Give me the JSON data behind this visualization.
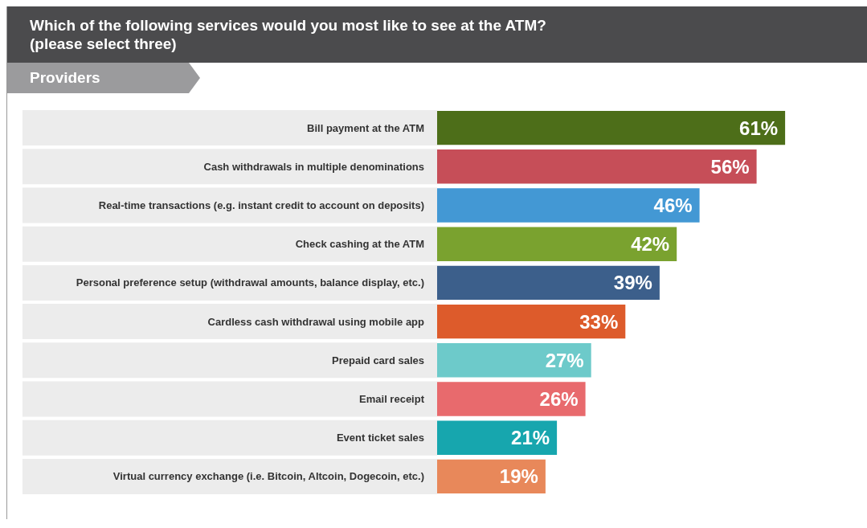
{
  "chart_data": {
    "type": "bar",
    "orientation": "horizontal",
    "title": "Which of the following services would you most like to see at the ATM?\n(please select three)",
    "subtitle": "Providers",
    "categories": [
      "Bill payment at the ATM",
      "Cash withdrawals in multiple denominations",
      "Real-time transactions (e.g. instant credit to account on deposits)",
      "Check cashing at the ATM",
      "Personal preference setup (withdrawal amounts, balance display, etc.)",
      "Cardless cash withdrawal using mobile app",
      "Prepaid card sales",
      "Email receipt",
      "Event ticket sales",
      "Virtual currency exchange (i.e. Bitcoin, Altcoin, Dogecoin, etc.)"
    ],
    "values": [
      61,
      56,
      46,
      42,
      39,
      33,
      27,
      26,
      21,
      19
    ],
    "value_labels": [
      "61%",
      "56%",
      "46%",
      "42%",
      "39%",
      "33%",
      "27%",
      "26%",
      "21%",
      "19%"
    ],
    "colors": [
      "#4d6e19",
      "#c64e58",
      "#4398d4",
      "#7aa22f",
      "#3c5f8b",
      "#dd5b2b",
      "#6dcaca",
      "#e86a6d",
      "#17a6ae",
      "#e8885a"
    ]
  }
}
